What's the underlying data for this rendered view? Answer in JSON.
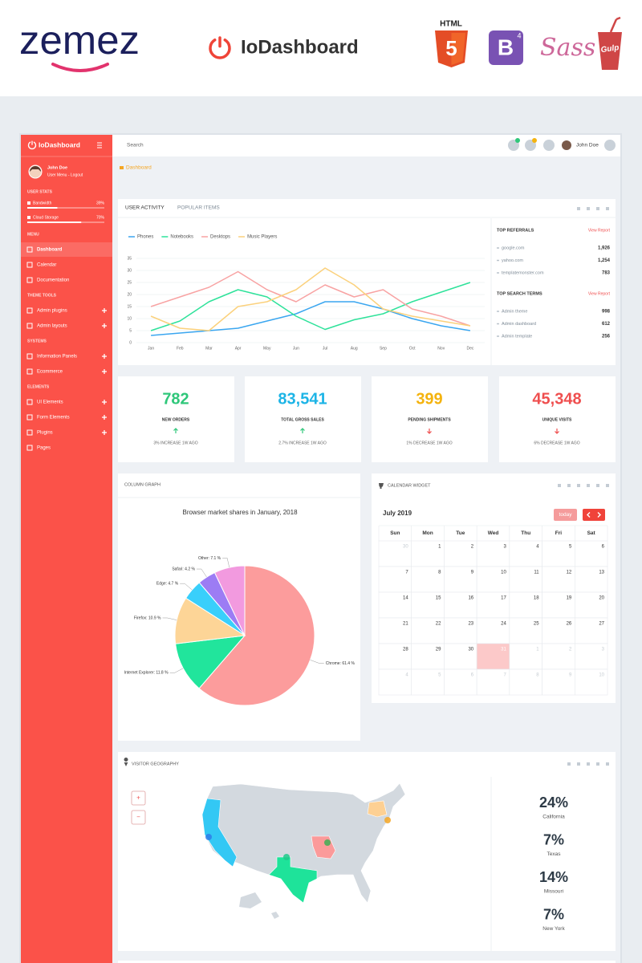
{
  "banner": {
    "logo": "zemez",
    "product": "IoDashboard",
    "html": "HTML",
    "html_version": "5",
    "bootstrap": "B",
    "bootstrap_version": "4",
    "sass": "Sass",
    "gulp": "Gulp"
  },
  "sidebar": {
    "brand": "IoDashboard",
    "user": {
      "name": "John Doe",
      "links": "User Menu - Logout"
    },
    "stats_title": "USER STATS",
    "stats": [
      {
        "label": "Bandwidth",
        "value": 39,
        "value_label": "39%"
      },
      {
        "label": "Cloud Storage",
        "value": 70,
        "value_label": "70%"
      }
    ],
    "sections": [
      {
        "title": "MENU",
        "items": [
          {
            "label": "Dashboard",
            "active": true
          },
          {
            "label": "Calendar"
          },
          {
            "label": "Documentation"
          }
        ]
      },
      {
        "title": "THEME TOOLS",
        "items": [
          {
            "label": "Admin plugins",
            "expandable": true
          },
          {
            "label": "Admin layouts",
            "expandable": true
          }
        ]
      },
      {
        "title": "SYSTEMS",
        "items": [
          {
            "label": "Information Panels",
            "expandable": true
          },
          {
            "label": "Ecommerce",
            "expandable": true
          }
        ]
      },
      {
        "title": "ELEMENTS",
        "items": [
          {
            "label": "UI Elements",
            "expandable": true
          },
          {
            "label": "Form Elements",
            "expandable": true
          },
          {
            "label": "Plugins",
            "expandable": true
          },
          {
            "label": "Pages"
          }
        ]
      }
    ]
  },
  "topbar": {
    "search": "Search",
    "user": "John Doe"
  },
  "breadcrumb": "Dashboard",
  "activity": {
    "tabs": [
      "USER ACTIVITY",
      "POPULAR ITEMS"
    ],
    "referrals": {
      "title": "TOP REFERRALS",
      "link": "View Report",
      "rows": [
        [
          "google.com",
          "1,926"
        ],
        [
          "yahoo.com",
          "1,254"
        ],
        [
          "templatemonster.com",
          "783"
        ]
      ]
    },
    "search_terms": {
      "title": "TOP SEARCH TERMS",
      "link": "View Report",
      "rows": [
        [
          "Admin theme",
          "998"
        ],
        [
          "Admin dashboard",
          "612"
        ],
        [
          "Admin template",
          "256"
        ]
      ]
    }
  },
  "stat_cards": [
    {
      "value": "782",
      "label": "NEW ORDERS",
      "note": "3% INCREASE 1W AGO",
      "trend": "up",
      "color": "#2fc77a",
      "arrow_color": "#2fc77a"
    },
    {
      "value": "83,541",
      "label": "TOTAL GROSS SALES",
      "note": "2.7% INCREASE 1W AGO",
      "trend": "up",
      "color": "#1db4e6",
      "arrow_color": "#2fc77a"
    },
    {
      "value": "399",
      "label": "PENDING SHIPMENTS",
      "note": "1% DECREASE 1W AGO",
      "trend": "down",
      "color": "#f4b30f",
      "arrow_color": "#ef4f4f"
    },
    {
      "value": "45,348",
      "label": "UNIQUE VISITS",
      "note": "6% DECREASE 1W AGO",
      "trend": "down",
      "color": "#ef4f4f",
      "arrow_color": "#ef4f4f"
    }
  ],
  "column_graph": {
    "title": "COLUMN GRAPH"
  },
  "calendar": {
    "title": "CALENDAR WIDGET",
    "month": "July 2019",
    "today_button": "today",
    "weekdays": [
      "Sun",
      "Mon",
      "Tue",
      "Wed",
      "Thu",
      "Fri",
      "Sat"
    ],
    "weeks": [
      [
        30,
        1,
        2,
        3,
        4,
        5,
        6
      ],
      [
        7,
        8,
        9,
        10,
        11,
        12,
        13
      ],
      [
        14,
        15,
        16,
        17,
        18,
        19,
        20
      ],
      [
        21,
        22,
        23,
        24,
        25,
        26,
        27
      ],
      [
        28,
        29,
        30,
        31,
        1,
        2,
        3
      ],
      [
        4,
        5,
        6,
        7,
        8,
        9,
        10
      ]
    ],
    "today": 31
  },
  "geography": {
    "title": "VISITOR GEOGRAPHY",
    "zoom": [
      "+",
      "−"
    ],
    "regions": [
      {
        "share": "24%",
        "name": "California",
        "color": "#33c8f4"
      },
      {
        "share": "7%",
        "name": "Texas",
        "color": "#1ee39a"
      },
      {
        "share": "14%",
        "name": "Missouri",
        "color": "#fb9a9a"
      },
      {
        "share": "7%",
        "name": "New York",
        "color": "#fdd093"
      }
    ]
  },
  "chart_data": [
    {
      "type": "line",
      "grid": true,
      "legend": "top-left",
      "categories": [
        "Jan",
        "Feb",
        "Mar",
        "Apr",
        "May",
        "Jun",
        "Jul",
        "Aug",
        "Sep",
        "Oct",
        "Nov",
        "Dec"
      ],
      "ylim": [
        0,
        35
      ],
      "yticks": [
        0,
        5,
        10,
        15,
        20,
        25,
        30,
        35
      ],
      "series": [
        {
          "name": "Phones",
          "color": "#3aa6f0",
          "values": [
            3,
            4,
            5,
            6,
            9,
            12,
            17,
            17,
            14,
            10,
            7,
            5
          ]
        },
        {
          "name": "Notebooks",
          "color": "#2ee29a",
          "values": [
            5,
            9,
            17,
            22,
            19,
            11,
            5.5,
            9.5,
            12,
            17,
            21,
            25
          ]
        },
        {
          "name": "Desktops",
          "color": "#f8a3a3",
          "values": [
            15,
            19,
            23,
            29.5,
            22,
            17,
            24,
            19,
            22,
            14,
            11,
            7
          ]
        },
        {
          "name": "Music Players",
          "color": "#fbd17c",
          "values": [
            11,
            6,
            5,
            15,
            17,
            22,
            31,
            24,
            14,
            11,
            9,
            7
          ]
        }
      ]
    },
    {
      "type": "pie",
      "title": "Browser market shares in January, 2018",
      "values": [
        61.4,
        11.8,
        10.9,
        4.7,
        4.2,
        7.1
      ],
      "value_labels": [
        "Chrome: 61.4 %",
        "Internet Explorer: 11.8 %",
        "Firefox: 10.9 %",
        "Edge: 4.7 %",
        "Safari: 4.2 %",
        "Other: 7.1 %"
      ],
      "colors": [
        "#fc9c9c",
        "#21e59c",
        "#fdd597",
        "#39cffb",
        "#9c7cf4",
        "#f29adf"
      ]
    }
  ]
}
